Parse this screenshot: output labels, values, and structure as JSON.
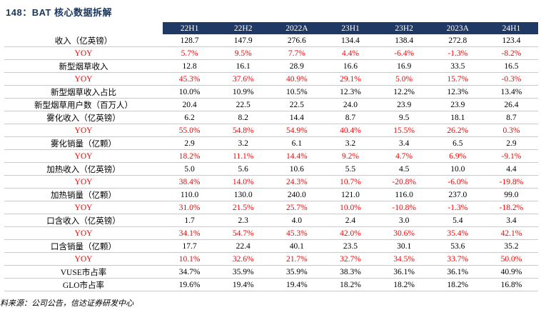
{
  "title": "148：BAT 核心数据拆解",
  "source": "料来源：公司公告，信达证券研发中心",
  "colors": {
    "header_bg": "#1f3864",
    "title_text": "#17365d",
    "yoy_red": "#ff0000",
    "row_line": "#b9cde5",
    "body_text": "#000000"
  },
  "chart_data": {
    "type": "table",
    "columns": [
      "22H1",
      "22H2",
      "2022A",
      "23H1",
      "23H2",
      "2023A",
      "24H1"
    ],
    "rows": [
      {
        "label": "收入（亿英镑）",
        "color": "black",
        "values": [
          "128.7",
          "147.9",
          "276.6",
          "134.4",
          "138.4",
          "272.8",
          "123.4"
        ]
      },
      {
        "label": "YOY",
        "color": "red",
        "values": [
          "5.7%",
          "9.5%",
          "7.7%",
          "4.4%",
          "-6.4%",
          "-1.3%",
          "-8.2%"
        ]
      },
      {
        "label": "新型烟草收入",
        "color": "black",
        "values": [
          "12.8",
          "16.1",
          "28.9",
          "16.6",
          "16.9",
          "33.5",
          "16.5"
        ]
      },
      {
        "label": "YOY",
        "color": "red",
        "values": [
          "45.3%",
          "37.6%",
          "40.9%",
          "29.1%",
          "5.0%",
          "15.7%",
          "-0.3%"
        ]
      },
      {
        "label": "新型烟草收入占比",
        "color": "black",
        "values": [
          "10.0%",
          "10.9%",
          "10.5%",
          "12.3%",
          "12.2%",
          "12.3%",
          "13.4%"
        ]
      },
      {
        "label": "新型烟草用户数（百万人）",
        "color": "black",
        "values": [
          "20.4",
          "22.5",
          "22.5",
          "24.0",
          "23.9",
          "23.9",
          "26.4"
        ]
      },
      {
        "label": "雾化收入（亿英镑）",
        "color": "black",
        "values": [
          "6.2",
          "8.2",
          "14.4",
          "8.7",
          "9.5",
          "18.1",
          "8.7"
        ]
      },
      {
        "label": "YOY",
        "color": "red",
        "values": [
          "55.0%",
          "54.8%",
          "54.9%",
          "40.4%",
          "15.5%",
          "26.2%",
          "0.3%"
        ]
      },
      {
        "label": "雾化销量（亿颗）",
        "color": "black",
        "values": [
          "2.9",
          "3.2",
          "6.1",
          "3.2",
          "3.4",
          "6.5",
          "2.9"
        ]
      },
      {
        "label": "YOY",
        "color": "red",
        "values": [
          "18.2%",
          "11.1%",
          "14.4%",
          "9.2%",
          "4.7%",
          "6.9%",
          "-9.1%"
        ]
      },
      {
        "label": "加热收入（亿英镑）",
        "color": "black",
        "values": [
          "5.0",
          "5.6",
          "10.6",
          "5.5",
          "4.5",
          "10.0",
          "4.4"
        ]
      },
      {
        "label": "YOY",
        "color": "red",
        "values": [
          "38.4%",
          "14.0%",
          "24.3%",
          "10.7%",
          "-20.8%",
          "-6.0%",
          "-19.8%"
        ]
      },
      {
        "label": "加热销量（亿颗）",
        "color": "black",
        "values": [
          "110.0",
          "130.0",
          "240.0",
          "121.0",
          "116.0",
          "237.0",
          "99.0"
        ]
      },
      {
        "label": "YOY",
        "color": "red",
        "values": [
          "31.0%",
          "21.5%",
          "25.7%",
          "10.0%",
          "-10.8%",
          "-1.3%",
          "-18.2%"
        ]
      },
      {
        "label": "口含收入（亿英镑）",
        "color": "black",
        "values": [
          "1.7",
          "2.3",
          "4.0",
          "2.4",
          "3.0",
          "5.4",
          "3.4"
        ]
      },
      {
        "label": "YOY",
        "color": "red",
        "values": [
          "34.1%",
          "54.7%",
          "45.3%",
          "42.0%",
          "30.6%",
          "35.4%",
          "42.1%"
        ]
      },
      {
        "label": "口含销量（亿颗）",
        "color": "black",
        "values": [
          "17.7",
          "22.4",
          "40.1",
          "23.5",
          "30.1",
          "53.6",
          "35.2"
        ]
      },
      {
        "label": "YOY",
        "color": "red",
        "values": [
          "10.1%",
          "32.6%",
          "21.7%",
          "32.7%",
          "34.5%",
          "33.7%",
          "50.0%"
        ]
      },
      {
        "label": "VUSE市占率",
        "color": "black",
        "values": [
          "34.7%",
          "35.9%",
          "35.9%",
          "38.3%",
          "36.1%",
          "36.1%",
          "40.9%"
        ]
      },
      {
        "label": "GLO市占率",
        "color": "black",
        "values": [
          "19.6%",
          "19.4%",
          "19.4%",
          "18.2%",
          "18.2%",
          "18.2%",
          "16.8%"
        ]
      }
    ]
  }
}
